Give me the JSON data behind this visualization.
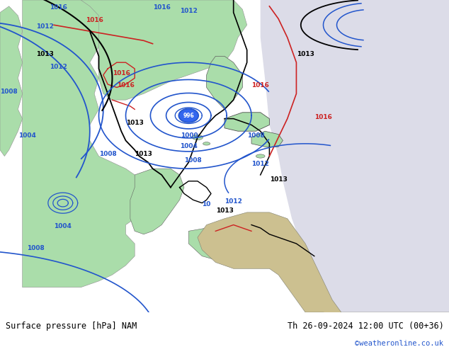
{
  "title_left": "Surface pressure [hPa] NAM",
  "title_right": "Th 26-09-2024 12:00 UTC (00+36)",
  "copyright": "©weatheronline.co.uk",
  "fig_width": 6.34,
  "fig_height": 4.9,
  "dpi": 100,
  "bg_ocean": "#b8b8c8",
  "bg_land_green": "#aaddaa",
  "bg_land_tan": "#ccc090",
  "bg_white": "#dcdce8",
  "contour_blue": "#2255cc",
  "contour_red": "#cc2222",
  "contour_black": "#000000",
  "bottom_bar_color": "#d0d0d0",
  "bottom_text_color": "#000000",
  "copyright_color": "#2255cc",
  "bottom_bar_height": 0.1,
  "title_fontsize": 8.5,
  "copyright_fontsize": 7.5,
  "contour_label_fontsize": 6.5
}
